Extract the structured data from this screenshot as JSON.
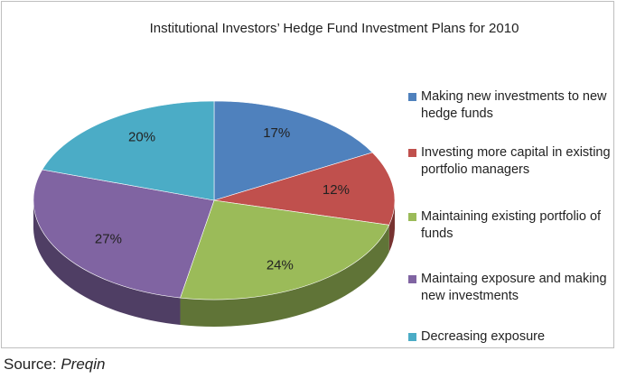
{
  "chart_data": {
    "type": "pie",
    "title": "Institutional Investors’ Hedge Fund Investment Plans for 2010",
    "categories": [
      "Making new investments to new hedge funds",
      "Investing more capital in existing portfolio managers",
      "Maintaining existing portfolio of funds",
      "Maintaing exposure and making new investments",
      "Decreasing exposure"
    ],
    "values": [
      17,
      12,
      24,
      27,
      20
    ],
    "value_labels": [
      "17%",
      "12%",
      "24%",
      "27%",
      "20%"
    ],
    "colors": [
      "#4f81bd",
      "#c0504d",
      "#9bbb59",
      "#8064a2",
      "#4bacc6"
    ],
    "legend": "right"
  },
  "source_prefix": "Source:",
  "source": "Preqin"
}
